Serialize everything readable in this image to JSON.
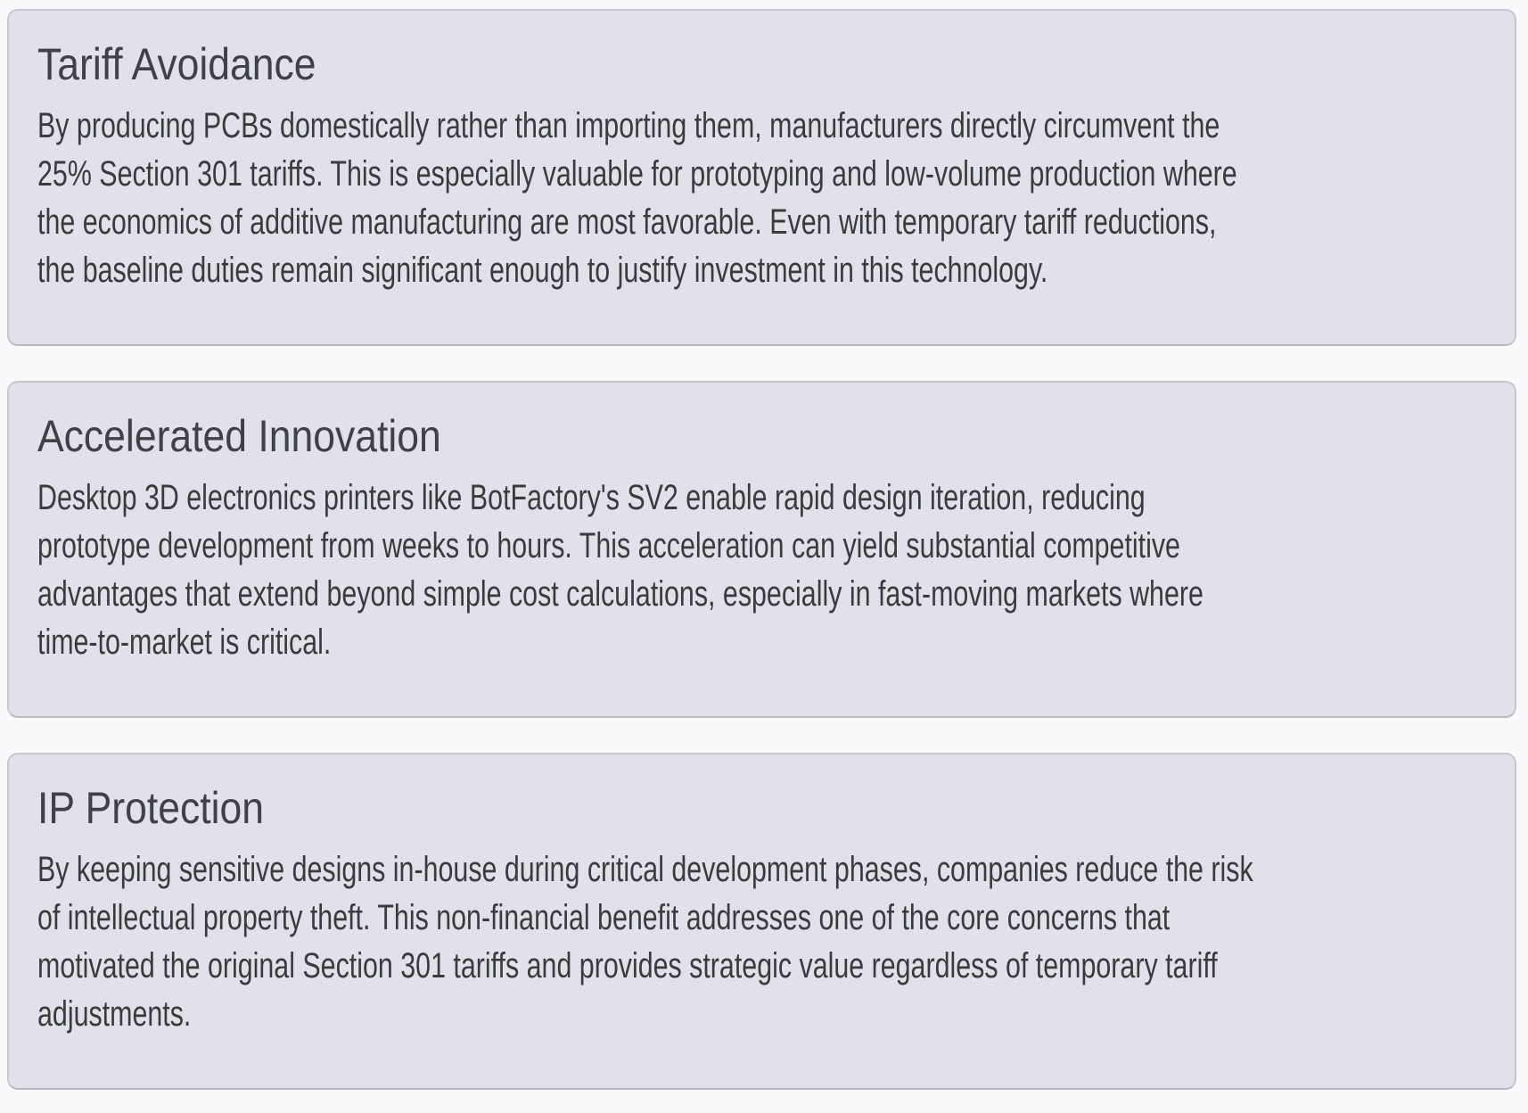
{
  "colors": {
    "page_background": "#f9fafc",
    "card_background": "#e0e1e9",
    "card_border": "#c6c7d1",
    "heading_text": "#404147",
    "body_text": "#3a3b3f"
  },
  "cards": [
    {
      "title": "Tariff Avoidance",
      "body_lines": [
        "By producing PCBs domestically rather than importing them, manufacturers directly circumvent the",
        "25% Section 301 tariffs. This is especially valuable for prototyping and low-volume production where",
        "the economics of additive manufacturing are most favorable. Even with temporary tariff reductions,",
        "the baseline duties remain significant enough to justify investment in this technology."
      ]
    },
    {
      "title": "Accelerated Innovation",
      "body_lines": [
        "Desktop 3D electronics printers like BotFactory's SV2 enable rapid design iteration, reducing",
        "prototype development from weeks to hours. This acceleration can yield substantial competitive",
        "advantages that extend beyond simple cost calculations, especially in fast-moving markets where",
        "time-to-market is critical."
      ]
    },
    {
      "title": "IP Protection",
      "body_lines": [
        "By keeping sensitive designs in-house during critical development phases, companies reduce the risk",
        "of intellectual property theft. This non-financial benefit addresses one of the core concerns that",
        "motivated the original Section 301 tariffs and provides strategic value regardless of temporary tariff",
        "adjustments."
      ]
    }
  ]
}
